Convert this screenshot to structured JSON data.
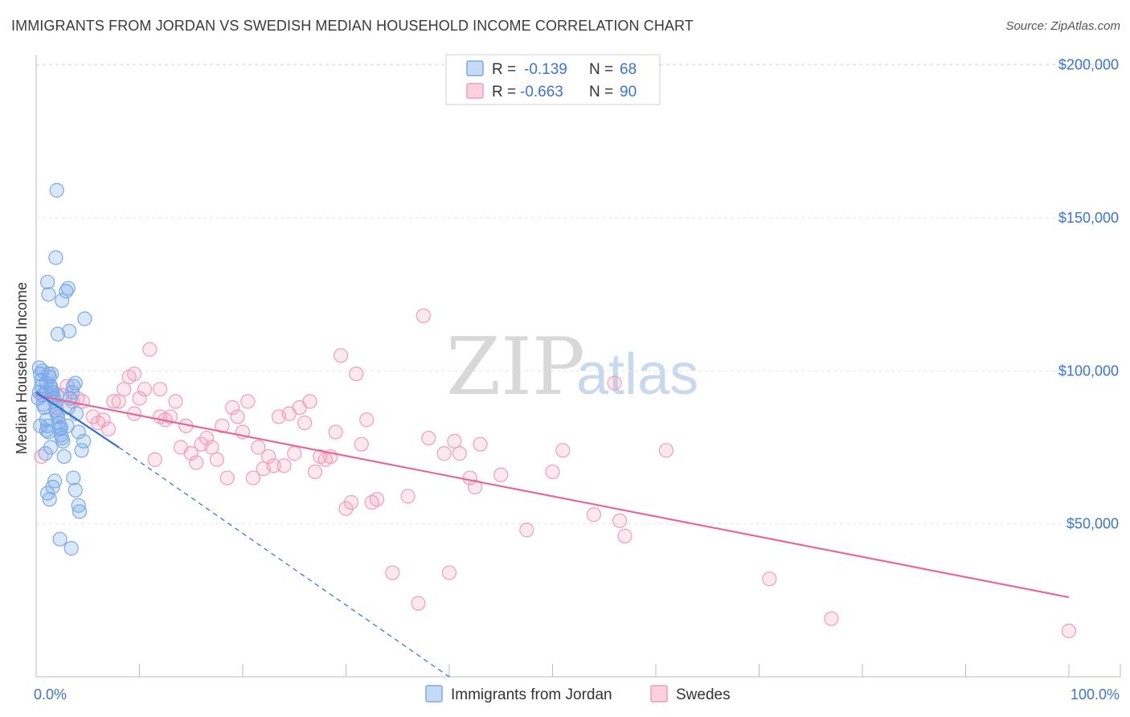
{
  "title": "IMMIGRANTS FROM JORDAN VS SWEDISH MEDIAN HOUSEHOLD INCOME CORRELATION CHART",
  "source": "Source: ZipAtlas.com",
  "watermark": {
    "zip": "ZIP",
    "atlas": "atlas"
  },
  "legend": {
    "rows": [
      {
        "r_label": "R =",
        "r_value": "-0.139",
        "n_label": "N =",
        "n_value": "68",
        "color": "#7aaae8"
      },
      {
        "r_label": "R =",
        "r_value": "-0.663",
        "n_label": "N =",
        "n_value": "90",
        "color": "#f29bb8"
      }
    ]
  },
  "chart_data": {
    "type": "scatter",
    "title": "IMMIGRANTS FROM JORDAN VS SWEDISH MEDIAN HOUSEHOLD INCOME CORRELATION CHART",
    "xlabel": "",
    "ylabel": "Median Household Income",
    "xlim": [
      0,
      100
    ],
    "ylim": [
      0,
      210000
    ],
    "x_tick_labels": [
      "0.0%",
      "100.0%"
    ],
    "y_ticks": [
      50000,
      100000,
      150000,
      200000
    ],
    "y_tick_labels": [
      "$50,000",
      "$100,000",
      "$150,000",
      "$200,000"
    ],
    "grid": true,
    "legend_position": "top-center",
    "series": [
      {
        "name": "Immigrants from Jordan",
        "color": "#7aaae8",
        "line_color": "#2f6fce",
        "trend": {
          "x": [
            0,
            8
          ],
          "y": [
            93000,
            75000
          ],
          "dashed_extension_to": [
            40,
            0
          ]
        },
        "points": [
          [
            0.2,
            91000
          ],
          [
            0.3,
            93000
          ],
          [
            0.4,
            99000
          ],
          [
            0.5,
            97000
          ],
          [
            0.5,
            95000
          ],
          [
            0.6,
            92000
          ],
          [
            0.7,
            89000
          ],
          [
            0.8,
            88000
          ],
          [
            0.9,
            93000
          ],
          [
            1.0,
            96000
          ],
          [
            1.0,
            84000
          ],
          [
            1.1,
            82000
          ],
          [
            1.2,
            80000
          ],
          [
            1.2,
            99000
          ],
          [
            1.3,
            98000
          ],
          [
            1.4,
            95000
          ],
          [
            1.5,
            94000
          ],
          [
            1.6,
            93000
          ],
          [
            1.7,
            91000
          ],
          [
            1.8,
            90000
          ],
          [
            1.9,
            87000
          ],
          [
            2.0,
            86000
          ],
          [
            2.1,
            85000
          ],
          [
            2.2,
            83000
          ],
          [
            2.3,
            81000
          ],
          [
            2.4,
            79000
          ],
          [
            2.5,
            78000
          ],
          [
            2.6,
            77000
          ],
          [
            0.3,
            101000
          ],
          [
            0.6,
            100000
          ],
          [
            1.5,
            99000
          ],
          [
            2.0,
            92000
          ],
          [
            1.4,
            75000
          ],
          [
            0.9,
            73000
          ],
          [
            2.7,
            72000
          ],
          [
            3.0,
            82000
          ],
          [
            3.1,
            88000
          ],
          [
            3.3,
            91000
          ],
          [
            3.5,
            93000
          ],
          [
            3.6,
            95000
          ],
          [
            3.8,
            96000
          ],
          [
            3.9,
            86000
          ],
          [
            4.1,
            80000
          ],
          [
            4.4,
            74000
          ],
          [
            4.6,
            77000
          ],
          [
            1.1,
            60000
          ],
          [
            1.3,
            58000
          ],
          [
            1.6,
            62000
          ],
          [
            1.8,
            64000
          ],
          [
            3.6,
            65000
          ],
          [
            3.8,
            61000
          ],
          [
            4.1,
            56000
          ],
          [
            4.2,
            54000
          ],
          [
            2.3,
            45000
          ],
          [
            3.4,
            42000
          ],
          [
            1.1,
            129000
          ],
          [
            1.2,
            125000
          ],
          [
            1.9,
            137000
          ],
          [
            2.5,
            123000
          ],
          [
            2.9,
            126000
          ],
          [
            3.1,
            127000
          ],
          [
            3.2,
            113000
          ],
          [
            2.1,
            112000
          ],
          [
            4.7,
            117000
          ],
          [
            2.0,
            159000
          ],
          [
            1.0,
            80500
          ],
          [
            2.4,
            81500
          ],
          [
            0.4,
            82000
          ]
        ]
      },
      {
        "name": "Swedes",
        "color": "#f29bb8",
        "line_color": "#e8679a",
        "trend": {
          "x": [
            0,
            100
          ],
          "y": [
            92000,
            26000
          ]
        },
        "points": [
          [
            0.5,
            72000
          ],
          [
            1.5,
            93000
          ],
          [
            2.5,
            92000
          ],
          [
            3.0,
            95000
          ],
          [
            3.5,
            90000
          ],
          [
            4.5,
            90000
          ],
          [
            5.5,
            85000
          ],
          [
            6.5,
            84000
          ],
          [
            7.0,
            81000
          ],
          [
            7.5,
            90000
          ],
          [
            8.0,
            90000
          ],
          [
            8.5,
            94000
          ],
          [
            9.0,
            98000
          ],
          [
            9.5,
            99000
          ],
          [
            10.0,
            91000
          ],
          [
            10.5,
            94000
          ],
          [
            11.0,
            107000
          ],
          [
            11.5,
            71000
          ],
          [
            12.0,
            85000
          ],
          [
            12.5,
            84000
          ],
          [
            13.0,
            85000
          ],
          [
            13.5,
            90000
          ],
          [
            14.0,
            75000
          ],
          [
            14.5,
            82000
          ],
          [
            15.0,
            73000
          ],
          [
            15.5,
            70000
          ],
          [
            16.0,
            76000
          ],
          [
            16.5,
            78000
          ],
          [
            17.0,
            75000
          ],
          [
            17.5,
            71000
          ],
          [
            18.0,
            82000
          ],
          [
            18.5,
            65000
          ],
          [
            19.0,
            88000
          ],
          [
            19.5,
            85000
          ],
          [
            20.0,
            80000
          ],
          [
            20.5,
            90000
          ],
          [
            21.0,
            65000
          ],
          [
            21.5,
            75000
          ],
          [
            22.0,
            68000
          ],
          [
            22.5,
            72000
          ],
          [
            23.0,
            69000
          ],
          [
            23.5,
            85000
          ],
          [
            24.0,
            69000
          ],
          [
            24.5,
            86000
          ],
          [
            25.0,
            73000
          ],
          [
            25.5,
            88000
          ],
          [
            26.0,
            83000
          ],
          [
            26.5,
            90000
          ],
          [
            27.0,
            67000
          ],
          [
            27.5,
            72000
          ],
          [
            28.0,
            71000
          ],
          [
            28.5,
            72000
          ],
          [
            29.0,
            80000
          ],
          [
            29.5,
            105000
          ],
          [
            30.0,
            55000
          ],
          [
            30.5,
            57000
          ],
          [
            31.0,
            99000
          ],
          [
            31.5,
            76000
          ],
          [
            32.0,
            84000
          ],
          [
            32.5,
            57000
          ],
          [
            33.0,
            58000
          ],
          [
            34.5,
            34000
          ],
          [
            36.0,
            59000
          ],
          [
            37.5,
            118000
          ],
          [
            37.0,
            24000
          ],
          [
            38.0,
            78000
          ],
          [
            39.5,
            73000
          ],
          [
            40.0,
            34000
          ],
          [
            40.5,
            77000
          ],
          [
            41.0,
            73000
          ],
          [
            42.0,
            65000
          ],
          [
            42.5,
            62000
          ],
          [
            43.0,
            76000
          ],
          [
            45.0,
            66000
          ],
          [
            47.5,
            48000
          ],
          [
            50.0,
            67000
          ],
          [
            51.0,
            74000
          ],
          [
            54.0,
            53000
          ],
          [
            56.0,
            96000
          ],
          [
            56.5,
            51000
          ],
          [
            57.0,
            46000
          ],
          [
            61.0,
            74000
          ],
          [
            71.0,
            32000
          ],
          [
            77.0,
            19000
          ],
          [
            100.0,
            15000
          ],
          [
            4.0,
            91000
          ],
          [
            2.0,
            88000
          ],
          [
            6.0,
            83000
          ],
          [
            9.5,
            86000
          ],
          [
            12.0,
            94000
          ]
        ]
      }
    ]
  },
  "bottom_legend": [
    {
      "label": "Immigrants from Jordan",
      "color": "#7aaae8"
    },
    {
      "label": "Swedes",
      "color": "#f29bb8"
    }
  ]
}
